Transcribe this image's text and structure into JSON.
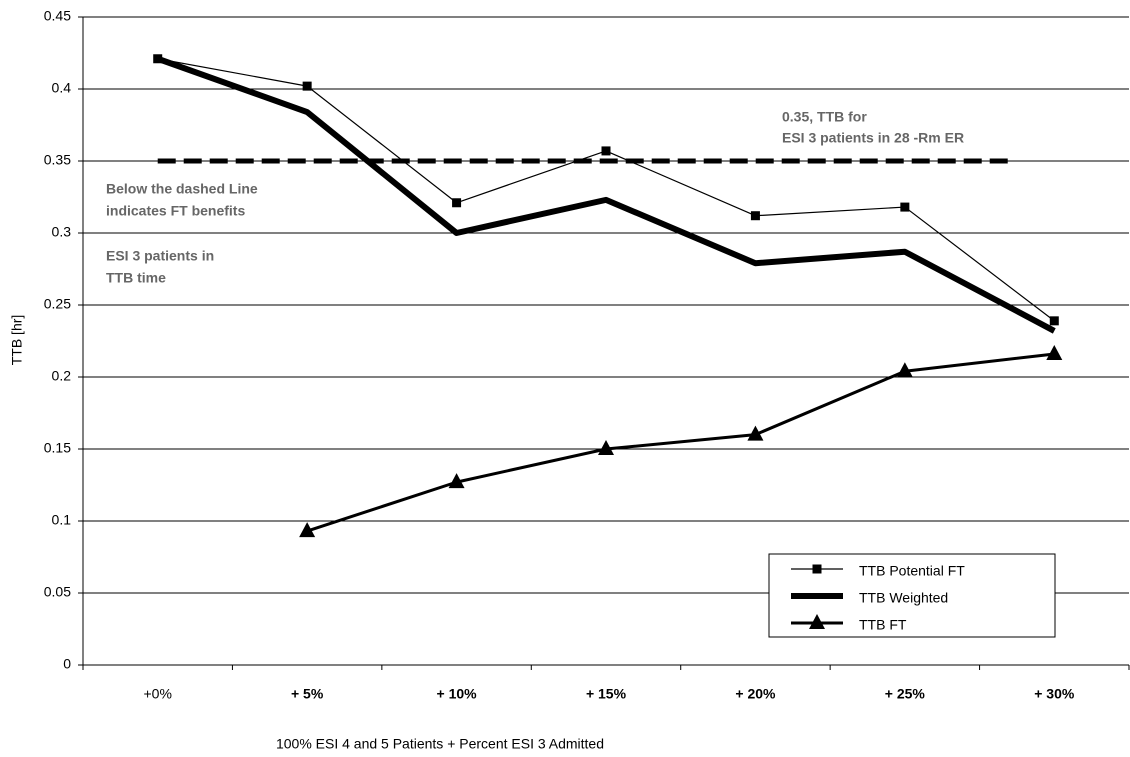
{
  "chart_data": {
    "type": "line",
    "x_label": "100% ESI 4 and 5 Patients + Percent ESI 3 Admitted",
    "y_label": "TTB  [hr]",
    "categories": [
      "+0%",
      "+ 5%",
      "+ 10%",
      "+ 15%",
      "+ 20%",
      "+ 25%",
      "+ 30%"
    ],
    "series": [
      {
        "name": "TTB Potential FT",
        "color": "#000000",
        "marker": "square",
        "width": 1.2,
        "values": [
          0.421,
          0.402,
          0.321,
          0.357,
          0.312,
          0.318,
          0.239
        ]
      },
      {
        "name": "TTB Weighted",
        "color": "#000000",
        "marker": "none",
        "width": 6,
        "values": [
          0.421,
          0.384,
          0.3,
          0.323,
          0.279,
          0.287,
          0.232
        ]
      },
      {
        "name": "TTB FT",
        "color": "#000000",
        "marker": "triangle",
        "width": 3,
        "values": [
          null,
          0.093,
          0.127,
          0.15,
          0.16,
          0.204,
          0.216
        ]
      }
    ],
    "reference_line": {
      "value": 0.35,
      "style": "dashed"
    },
    "annotations": [
      [
        "0.35, TTB for",
        "ESI 3 patients in 28 -Rm ER"
      ],
      [
        "Below the dashed Line",
        "indicates FT benefits"
      ],
      [
        "ESI 3 patients in",
        "TTB time"
      ]
    ],
    "ylim": [
      0,
      0.45
    ],
    "yticks": [
      0,
      0.05,
      0.1,
      0.15,
      0.2,
      0.25,
      0.3,
      0.35,
      0.4,
      0.45
    ],
    "grid": true,
    "legend": "lower right"
  }
}
